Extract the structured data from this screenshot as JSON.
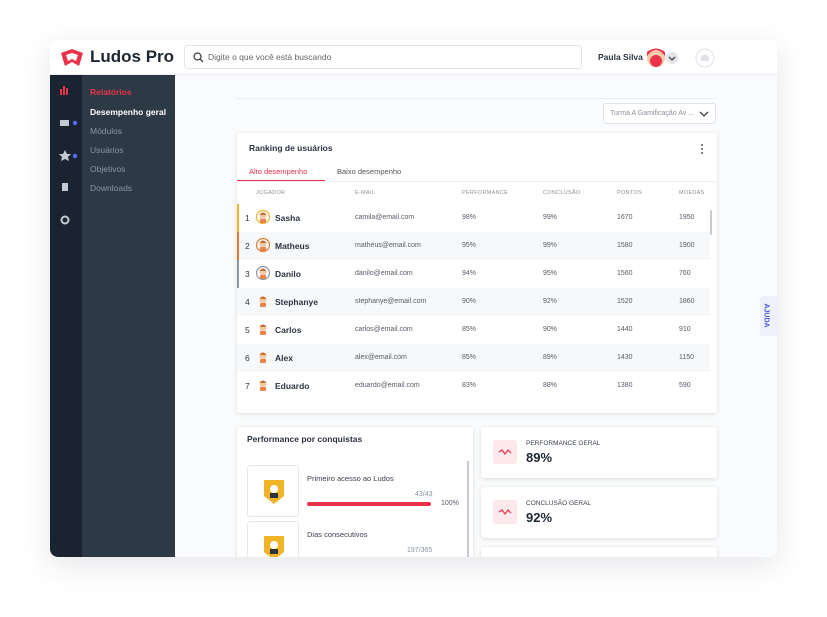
{
  "header": {
    "brand": "Ludos Pro",
    "search_placeholder": "Digite o que você está buscando",
    "user_name": "Paula Silva"
  },
  "sidebar": {
    "section": "Relatórios",
    "items": [
      "Desempenho geral",
      "Módulos",
      "Usuários",
      "Objetivos",
      "Downloads"
    ]
  },
  "filter": "Turma A Gamificação Av ...",
  "ranking": {
    "title": "Ranking de usuários",
    "tabs": [
      "Alto desempenho",
      "Baixo desempenho"
    ],
    "columns": [
      "JOGADOR",
      "E-MAIL",
      "PERFORMANCE",
      "CONCLUSÃO",
      "PONTOS",
      "MOEDAS"
    ],
    "rows": [
      [
        1,
        "Sasha",
        "camila@email.com",
        "98%",
        "99%",
        1670,
        1950
      ],
      [
        2,
        "Matheus",
        "matheus@email.com",
        "95%",
        "99%",
        1580,
        1900
      ],
      [
        3,
        "Danilo",
        "danilo@email.com",
        "94%",
        "95%",
        1560,
        760
      ],
      [
        4,
        "Stephanye",
        "stephanye@email.com",
        "90%",
        "92%",
        1520,
        1860
      ],
      [
        5,
        "Carlos",
        "carlos@email.com",
        "85%",
        "90%",
        1440,
        910
      ],
      [
        6,
        "Alex",
        "alex@email.com",
        "85%",
        "89%",
        1430,
        1150
      ],
      [
        7,
        "Eduardo",
        "eduardo@email.com",
        "83%",
        "88%",
        1380,
        590
      ]
    ]
  },
  "achievements": {
    "title": "Performance por conquistas",
    "items": [
      {
        "label": "Primeiro acesso ao Ludos",
        "count": "43/43",
        "progress": "100%"
      },
      {
        "label": "Dias consecutivos",
        "count": "197/365"
      }
    ]
  },
  "stats": [
    {
      "label": "PERFORMANCE GERAL",
      "value": "89%"
    },
    {
      "label": "CONCLUSÃO GERAL",
      "value": "92%"
    }
  ],
  "help": "AJUDA"
}
